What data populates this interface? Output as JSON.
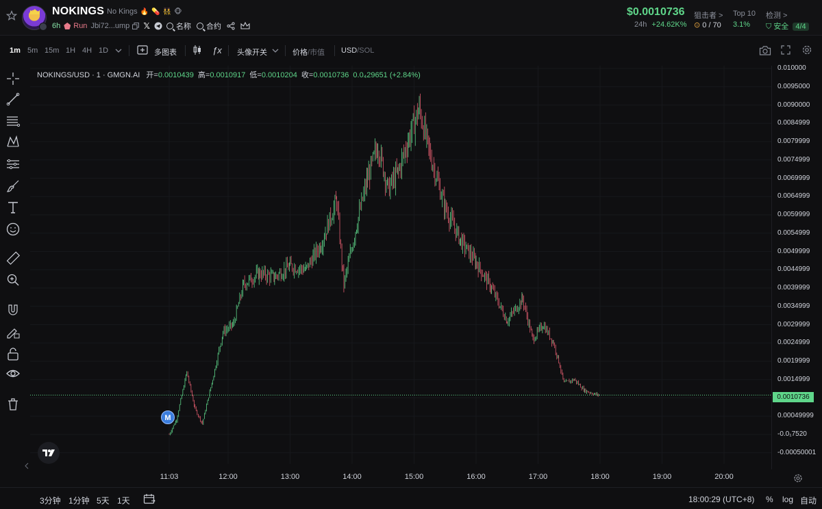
{
  "header": {
    "token_name": "NOKINGS",
    "token_subtitle": "No Kings",
    "emojis": [
      "🔥",
      "💊",
      "👯",
      "🐵"
    ],
    "age": "6h",
    "run_label": "Run",
    "address": "Jbi72...ump",
    "name_search_label": "名称",
    "contract_search_label": "合约",
    "price": "$0.0010736",
    "change_label": "24h",
    "change_value": "+24.62K%",
    "sniper_label": "狙击者 >",
    "sniper_value": "0 / 70",
    "top10_label": "Top 10",
    "top10_value": "3.1%",
    "check_label": "检测 >",
    "safe_label": "安全",
    "safe_value": "4/4",
    "colors": {
      "up": "#5fd68a",
      "down": "#e35d6f",
      "accent": "#3b7ddd"
    }
  },
  "toolbar": {
    "timeframes": [
      "1m",
      "5m",
      "15m",
      "1H",
      "4H",
      "1D"
    ],
    "active_timeframe": "1m",
    "multi_chart": "多图表",
    "fx_label": "ƒx",
    "avatar_toggle": "头像开关",
    "price_label": "价格",
    "mcap_label": "市值",
    "usd_label": "USD",
    "sol_label": "SOL",
    "separator": "/"
  },
  "left_tools": [
    "crosshair-icon",
    "trendline-icon",
    "fib-icon",
    "pattern-icon",
    "measure-icon",
    "brush-icon",
    "text-icon",
    "emoji-icon",
    "ruler-icon",
    "zoom-icon",
    "magnet-icon",
    "lock-draw-icon",
    "lock-icon",
    "eye-icon",
    "trash-icon"
  ],
  "legend": {
    "symbol": "NOKINGS/USD · 1 · GMGN.AI",
    "open_label": "开=",
    "open": "0.0010439",
    "high_label": "高=",
    "high": "0.0010917",
    "low_label": "低=",
    "low": "0.0010204",
    "close_label": "收=",
    "close": "0.0010736",
    "change": "0.0₄29651 (+2.84%)"
  },
  "chart_data": {
    "type": "candlestick",
    "title": "NOKINGS/USD · 1 · GMGN.AI",
    "ylim": [
      -0.0005,
      0.01
    ],
    "y_ticks": [
      "0.010000",
      "0.0095000",
      "0.0090000",
      "0.0084999",
      "0.0079999",
      "0.0074999",
      "0.0069999",
      "0.0064999",
      "0.0059999",
      "0.0054999",
      "0.0049999",
      "0.0044999",
      "0.0039999",
      "0.0034999",
      "0.0029999",
      "0.0024999",
      "0.0019999",
      "0.0014999",
      "0.0010736",
      "0.00049999",
      "-0.0₁7520",
      "-0.00050001"
    ],
    "x_ticks": [
      "11:03",
      "12:00",
      "13:00",
      "14:00",
      "15:00",
      "16:00",
      "17:00",
      "18:00",
      "19:00",
      "20:00"
    ],
    "current_price": "0.0010736",
    "marker": "M",
    "path_points": [
      [
        "11:03",
        0.0
      ],
      [
        "11:10",
        0.0004
      ],
      [
        "11:20",
        0.0017
      ],
      [
        "11:28",
        0.0007
      ],
      [
        "11:35",
        0.0003
      ],
      [
        "11:45",
        0.0015
      ],
      [
        "11:55",
        0.0028
      ],
      [
        "12:05",
        0.003
      ],
      [
        "12:15",
        0.0041
      ],
      [
        "12:30",
        0.0044
      ],
      [
        "12:45",
        0.0043
      ],
      [
        "13:00",
        0.0046
      ],
      [
        "13:15",
        0.0045
      ],
      [
        "13:30",
        0.0052
      ],
      [
        "13:45",
        0.0064
      ],
      [
        "13:52",
        0.0041
      ],
      [
        "14:05",
        0.0058
      ],
      [
        "14:15",
        0.007
      ],
      [
        "14:25",
        0.0079
      ],
      [
        "14:35",
        0.0067
      ],
      [
        "14:45",
        0.0072
      ],
      [
        "14:55",
        0.0081
      ],
      [
        "15:05",
        0.0089
      ],
      [
        "15:15",
        0.0077
      ],
      [
        "15:30",
        0.0062
      ],
      [
        "15:45",
        0.0053
      ],
      [
        "16:00",
        0.0047
      ],
      [
        "16:15",
        0.004
      ],
      [
        "16:30",
        0.0031
      ],
      [
        "16:45",
        0.0037
      ],
      [
        "16:55",
        0.0026
      ],
      [
        "17:05",
        0.003
      ],
      [
        "17:15",
        0.0025
      ],
      [
        "17:20",
        0.002
      ],
      [
        "17:25",
        0.0014
      ],
      [
        "17:35",
        0.0015
      ],
      [
        "17:45",
        0.0012
      ],
      [
        "17:55",
        0.0011
      ],
      [
        "18:00",
        0.0010736
      ]
    ]
  },
  "bottom": {
    "range_3m": "3分钟",
    "range_1m": "1分钟",
    "range_5d": "5天",
    "range_1d": "1天",
    "clock": "18:00:29 (UTC+8)",
    "percent": "%",
    "log": "log",
    "auto": "自动"
  }
}
